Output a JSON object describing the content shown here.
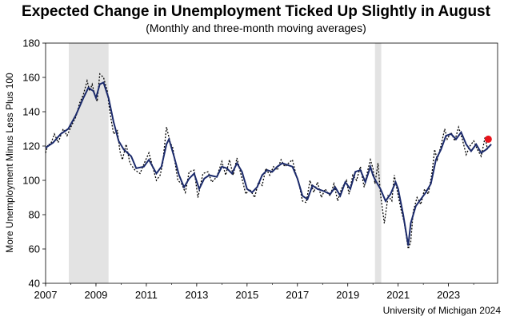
{
  "chart_data": {
    "type": "line",
    "title": "Expected Change in Unemployment Ticked Up Slightly in August",
    "subtitle": "(Monthly and three-month moving averages)",
    "ylabel": "More Unemployment  Minus Less Plus 100",
    "xlabel": "",
    "source": "University of Michigan 2024",
    "xlim": [
      2007,
      2024.95
    ],
    "ylim": [
      40,
      180
    ],
    "yticks": [
      "40",
      "60",
      "80",
      "100",
      "120",
      "140",
      "160",
      "180"
    ],
    "xticks": [
      "2007",
      "2009",
      "2011",
      "2013",
      "2015",
      "2017",
      "2019",
      "2021",
      "2023"
    ],
    "recessions": [
      [
        2007.92,
        2009.5
      ],
      [
        2020.08,
        2020.33
      ]
    ],
    "latest_point": {
      "x": 2024.58,
      "y": 124
    },
    "three_month_anchors": [
      [
        2007.0,
        119
      ],
      [
        2007.3,
        122
      ],
      [
        2007.6,
        127
      ],
      [
        2007.9,
        130
      ],
      [
        2008.2,
        138
      ],
      [
        2008.5,
        148
      ],
      [
        2008.7,
        154
      ],
      [
        2008.9,
        152
      ],
      [
        2009.0,
        148
      ],
      [
        2009.15,
        156
      ],
      [
        2009.3,
        157
      ],
      [
        2009.5,
        148
      ],
      [
        2009.7,
        134
      ],
      [
        2009.9,
        123
      ],
      [
        2010.1,
        118
      ],
      [
        2010.4,
        114
      ],
      [
        2010.6,
        107
      ],
      [
        2010.9,
        108
      ],
      [
        2011.1,
        112
      ],
      [
        2011.4,
        104
      ],
      [
        2011.6,
        108
      ],
      [
        2011.8,
        121
      ],
      [
        2011.9,
        124
      ],
      [
        2012.1,
        114
      ],
      [
        2012.3,
        103
      ],
      [
        2012.5,
        96
      ],
      [
        2012.7,
        101
      ],
      [
        2012.9,
        104
      ],
      [
        2013.1,
        95
      ],
      [
        2013.3,
        101
      ],
      [
        2013.5,
        103
      ],
      [
        2013.8,
        102
      ],
      [
        2014.0,
        108
      ],
      [
        2014.2,
        107
      ],
      [
        2014.4,
        104
      ],
      [
        2014.6,
        110
      ],
      [
        2014.8,
        105
      ],
      [
        2015.0,
        95
      ],
      [
        2015.2,
        93
      ],
      [
        2015.4,
        96
      ],
      [
        2015.6,
        103
      ],
      [
        2015.8,
        106
      ],
      [
        2016.0,
        105
      ],
      [
        2016.2,
        108
      ],
      [
        2016.4,
        110
      ],
      [
        2016.6,
        109
      ],
      [
        2016.8,
        108
      ],
      [
        2017.0,
        101
      ],
      [
        2017.2,
        91
      ],
      [
        2017.4,
        89
      ],
      [
        2017.6,
        97
      ],
      [
        2017.8,
        95
      ],
      [
        2018.0,
        94
      ],
      [
        2018.3,
        92
      ],
      [
        2018.5,
        96
      ],
      [
        2018.7,
        91
      ],
      [
        2018.9,
        99
      ],
      [
        2019.1,
        95
      ],
      [
        2019.3,
        105
      ],
      [
        2019.5,
        106
      ],
      [
        2019.7,
        99
      ],
      [
        2019.9,
        108
      ],
      [
        2020.0,
        103
      ],
      [
        2020.1,
        100
      ],
      [
        2020.3,
        95
      ],
      [
        2020.5,
        88
      ],
      [
        2020.7,
        92
      ],
      [
        2020.9,
        99
      ],
      [
        2021.0,
        95
      ],
      [
        2021.2,
        80
      ],
      [
        2021.4,
        62
      ],
      [
        2021.5,
        75
      ],
      [
        2021.7,
        85
      ],
      [
        2021.9,
        89
      ],
      [
        2022.1,
        93
      ],
      [
        2022.3,
        98
      ],
      [
        2022.5,
        112
      ],
      [
        2022.7,
        118
      ],
      [
        2022.9,
        126
      ],
      [
        2023.1,
        127
      ],
      [
        2023.3,
        124
      ],
      [
        2023.5,
        128
      ],
      [
        2023.7,
        121
      ],
      [
        2023.9,
        117
      ],
      [
        2024.1,
        121
      ],
      [
        2024.3,
        116
      ],
      [
        2024.5,
        118
      ],
      [
        2024.7,
        121
      ]
    ],
    "monthly_anchors": [
      [
        2007.0,
        116
      ],
      [
        2007.1,
        121
      ],
      [
        2007.2,
        121
      ],
      [
        2007.35,
        127
      ],
      [
        2007.5,
        122
      ],
      [
        2007.7,
        130
      ],
      [
        2007.85,
        126
      ],
      [
        2008.0,
        131
      ],
      [
        2008.2,
        137
      ],
      [
        2008.35,
        145
      ],
      [
        2008.5,
        150
      ],
      [
        2008.65,
        158
      ],
      [
        2008.75,
        152
      ],
      [
        2008.85,
        156
      ],
      [
        2008.95,
        150
      ],
      [
        2009.05,
        146
      ],
      [
        2009.15,
        162
      ],
      [
        2009.3,
        160
      ],
      [
        2009.45,
        152
      ],
      [
        2009.55,
        140
      ],
      [
        2009.7,
        127
      ],
      [
        2009.85,
        129
      ],
      [
        2009.95,
        117
      ],
      [
        2010.05,
        112
      ],
      [
        2010.2,
        121
      ],
      [
        2010.35,
        110
      ],
      [
        2010.55,
        106
      ],
      [
        2010.75,
        104
      ],
      [
        2010.95,
        111
      ],
      [
        2011.1,
        116
      ],
      [
        2011.25,
        108
      ],
      [
        2011.4,
        100
      ],
      [
        2011.55,
        103
      ],
      [
        2011.65,
        110
      ],
      [
        2011.8,
        131
      ],
      [
        2011.95,
        122
      ],
      [
        2012.05,
        119
      ],
      [
        2012.25,
        100
      ],
      [
        2012.4,
        98
      ],
      [
        2012.55,
        93
      ],
      [
        2012.7,
        105
      ],
      [
        2012.9,
        106
      ],
      [
        2013.05,
        90
      ],
      [
        2013.25,
        104
      ],
      [
        2013.45,
        105
      ],
      [
        2013.6,
        99
      ],
      [
        2013.8,
        102
      ],
      [
        2014.0,
        111
      ],
      [
        2014.15,
        103
      ],
      [
        2014.3,
        112
      ],
      [
        2014.45,
        103
      ],
      [
        2014.6,
        113
      ],
      [
        2014.8,
        101
      ],
      [
        2014.95,
        92
      ],
      [
        2015.1,
        95
      ],
      [
        2015.3,
        90
      ],
      [
        2015.45,
        99
      ],
      [
        2015.6,
        97
      ],
      [
        2015.75,
        107
      ],
      [
        2015.9,
        103
      ],
      [
        2016.05,
        108
      ],
      [
        2016.2,
        106
      ],
      [
        2016.35,
        112
      ],
      [
        2016.5,
        108
      ],
      [
        2016.65,
        110
      ],
      [
        2016.8,
        112
      ],
      [
        2016.95,
        103
      ],
      [
        2017.05,
        99
      ],
      [
        2017.2,
        88
      ],
      [
        2017.35,
        87
      ],
      [
        2017.5,
        100
      ],
      [
        2017.65,
        93
      ],
      [
        2017.8,
        99
      ],
      [
        2017.95,
        90
      ],
      [
        2018.1,
        95
      ],
      [
        2018.3,
        91
      ],
      [
        2018.45,
        98
      ],
      [
        2018.6,
        88
      ],
      [
        2018.75,
        95
      ],
      [
        2018.95,
        100
      ],
      [
        2019.05,
        92
      ],
      [
        2019.2,
        103
      ],
      [
        2019.35,
        100
      ],
      [
        2019.5,
        108
      ],
      [
        2019.65,
        96
      ],
      [
        2019.75,
        103
      ],
      [
        2019.9,
        112
      ],
      [
        2020.0,
        107
      ],
      [
        2020.08,
        98
      ],
      [
        2020.2,
        110
      ],
      [
        2020.3,
        92
      ],
      [
        2020.45,
        75
      ],
      [
        2020.6,
        91
      ],
      [
        2020.75,
        88
      ],
      [
        2020.85,
        103
      ],
      [
        2020.95,
        95
      ],
      [
        2021.1,
        84
      ],
      [
        2021.25,
        75
      ],
      [
        2021.4,
        60
      ],
      [
        2021.5,
        64
      ],
      [
        2021.6,
        82
      ],
      [
        2021.75,
        90
      ],
      [
        2021.9,
        86
      ],
      [
        2022.05,
        95
      ],
      [
        2022.2,
        92
      ],
      [
        2022.35,
        105
      ],
      [
        2022.45,
        118
      ],
      [
        2022.55,
        112
      ],
      [
        2022.7,
        120
      ],
      [
        2022.85,
        130
      ],
      [
        2022.95,
        124
      ],
      [
        2023.1,
        128
      ],
      [
        2023.25,
        123
      ],
      [
        2023.4,
        131
      ],
      [
        2023.55,
        124
      ],
      [
        2023.7,
        115
      ],
      [
        2023.85,
        120
      ],
      [
        2024.0,
        123
      ],
      [
        2024.15,
        118
      ],
      [
        2024.3,
        114
      ],
      [
        2024.45,
        125
      ],
      [
        2024.55,
        118
      ]
    ]
  }
}
